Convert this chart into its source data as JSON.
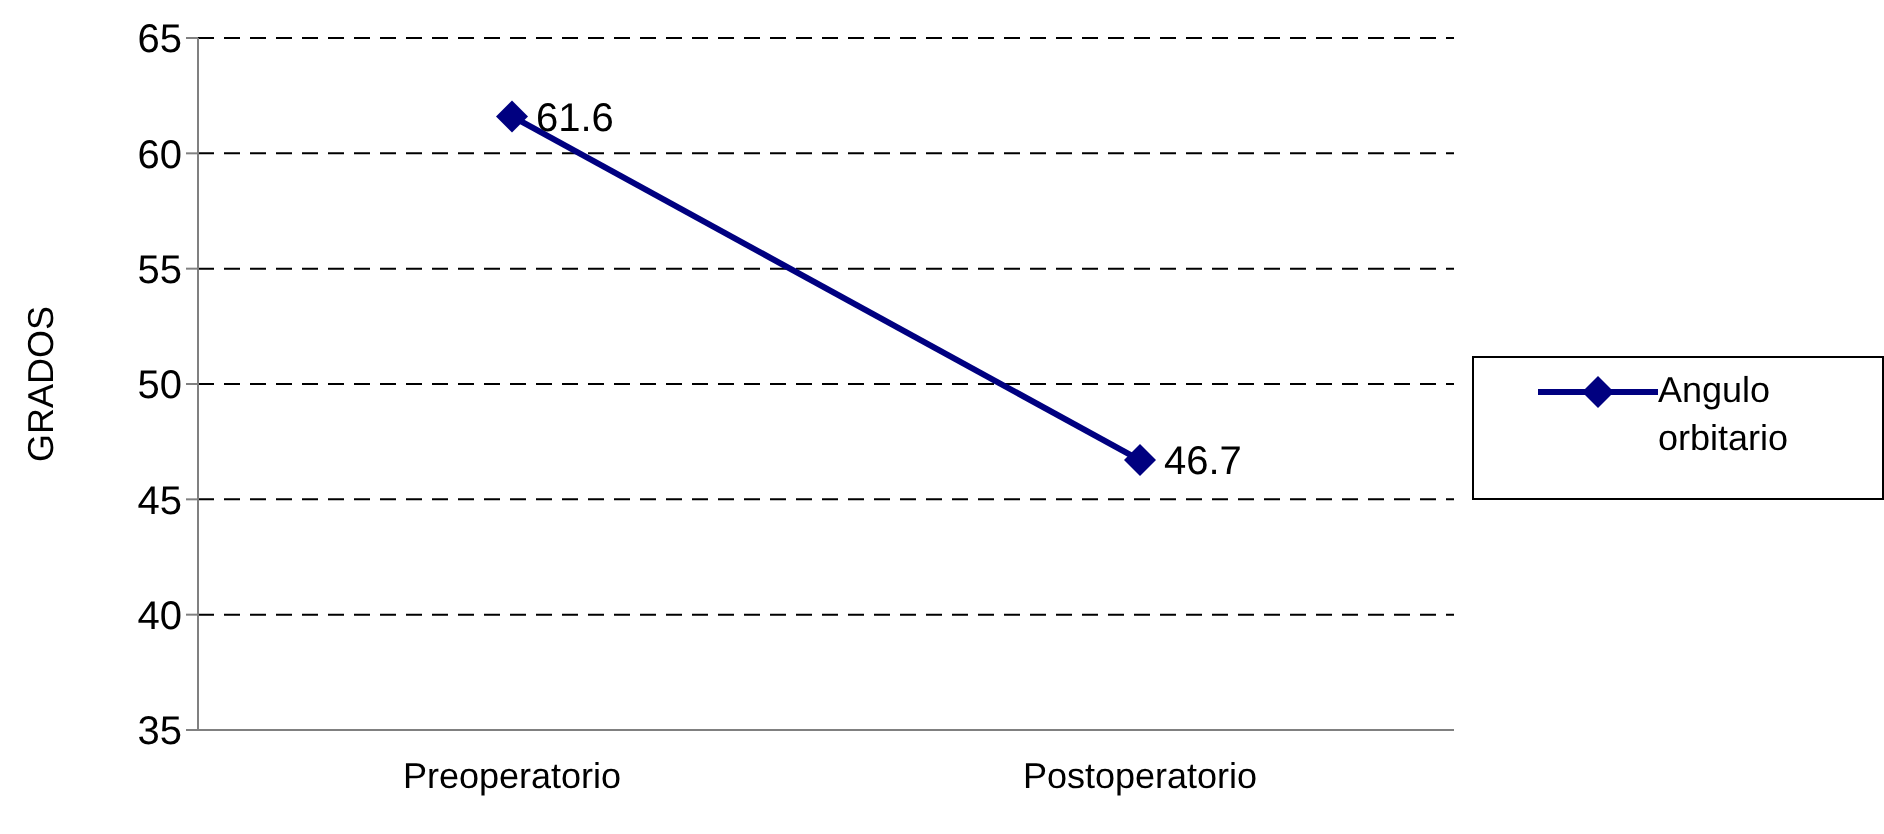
{
  "chart_data": {
    "type": "line",
    "ylabel": "GRADOS",
    "categories": [
      "Preoperatorio",
      "Postoperatorio"
    ],
    "series": [
      {
        "name": "Angulo orbitario",
        "color": "#000080",
        "values": [
          61.6,
          46.7
        ]
      }
    ],
    "ylim": [
      35,
      65
    ],
    "yticks": [
      35,
      40,
      45,
      50,
      55,
      60,
      65
    ],
    "grid": "y",
    "legend": "right",
    "marker": "diamond",
    "line_style": "solid",
    "data_labels": true
  }
}
